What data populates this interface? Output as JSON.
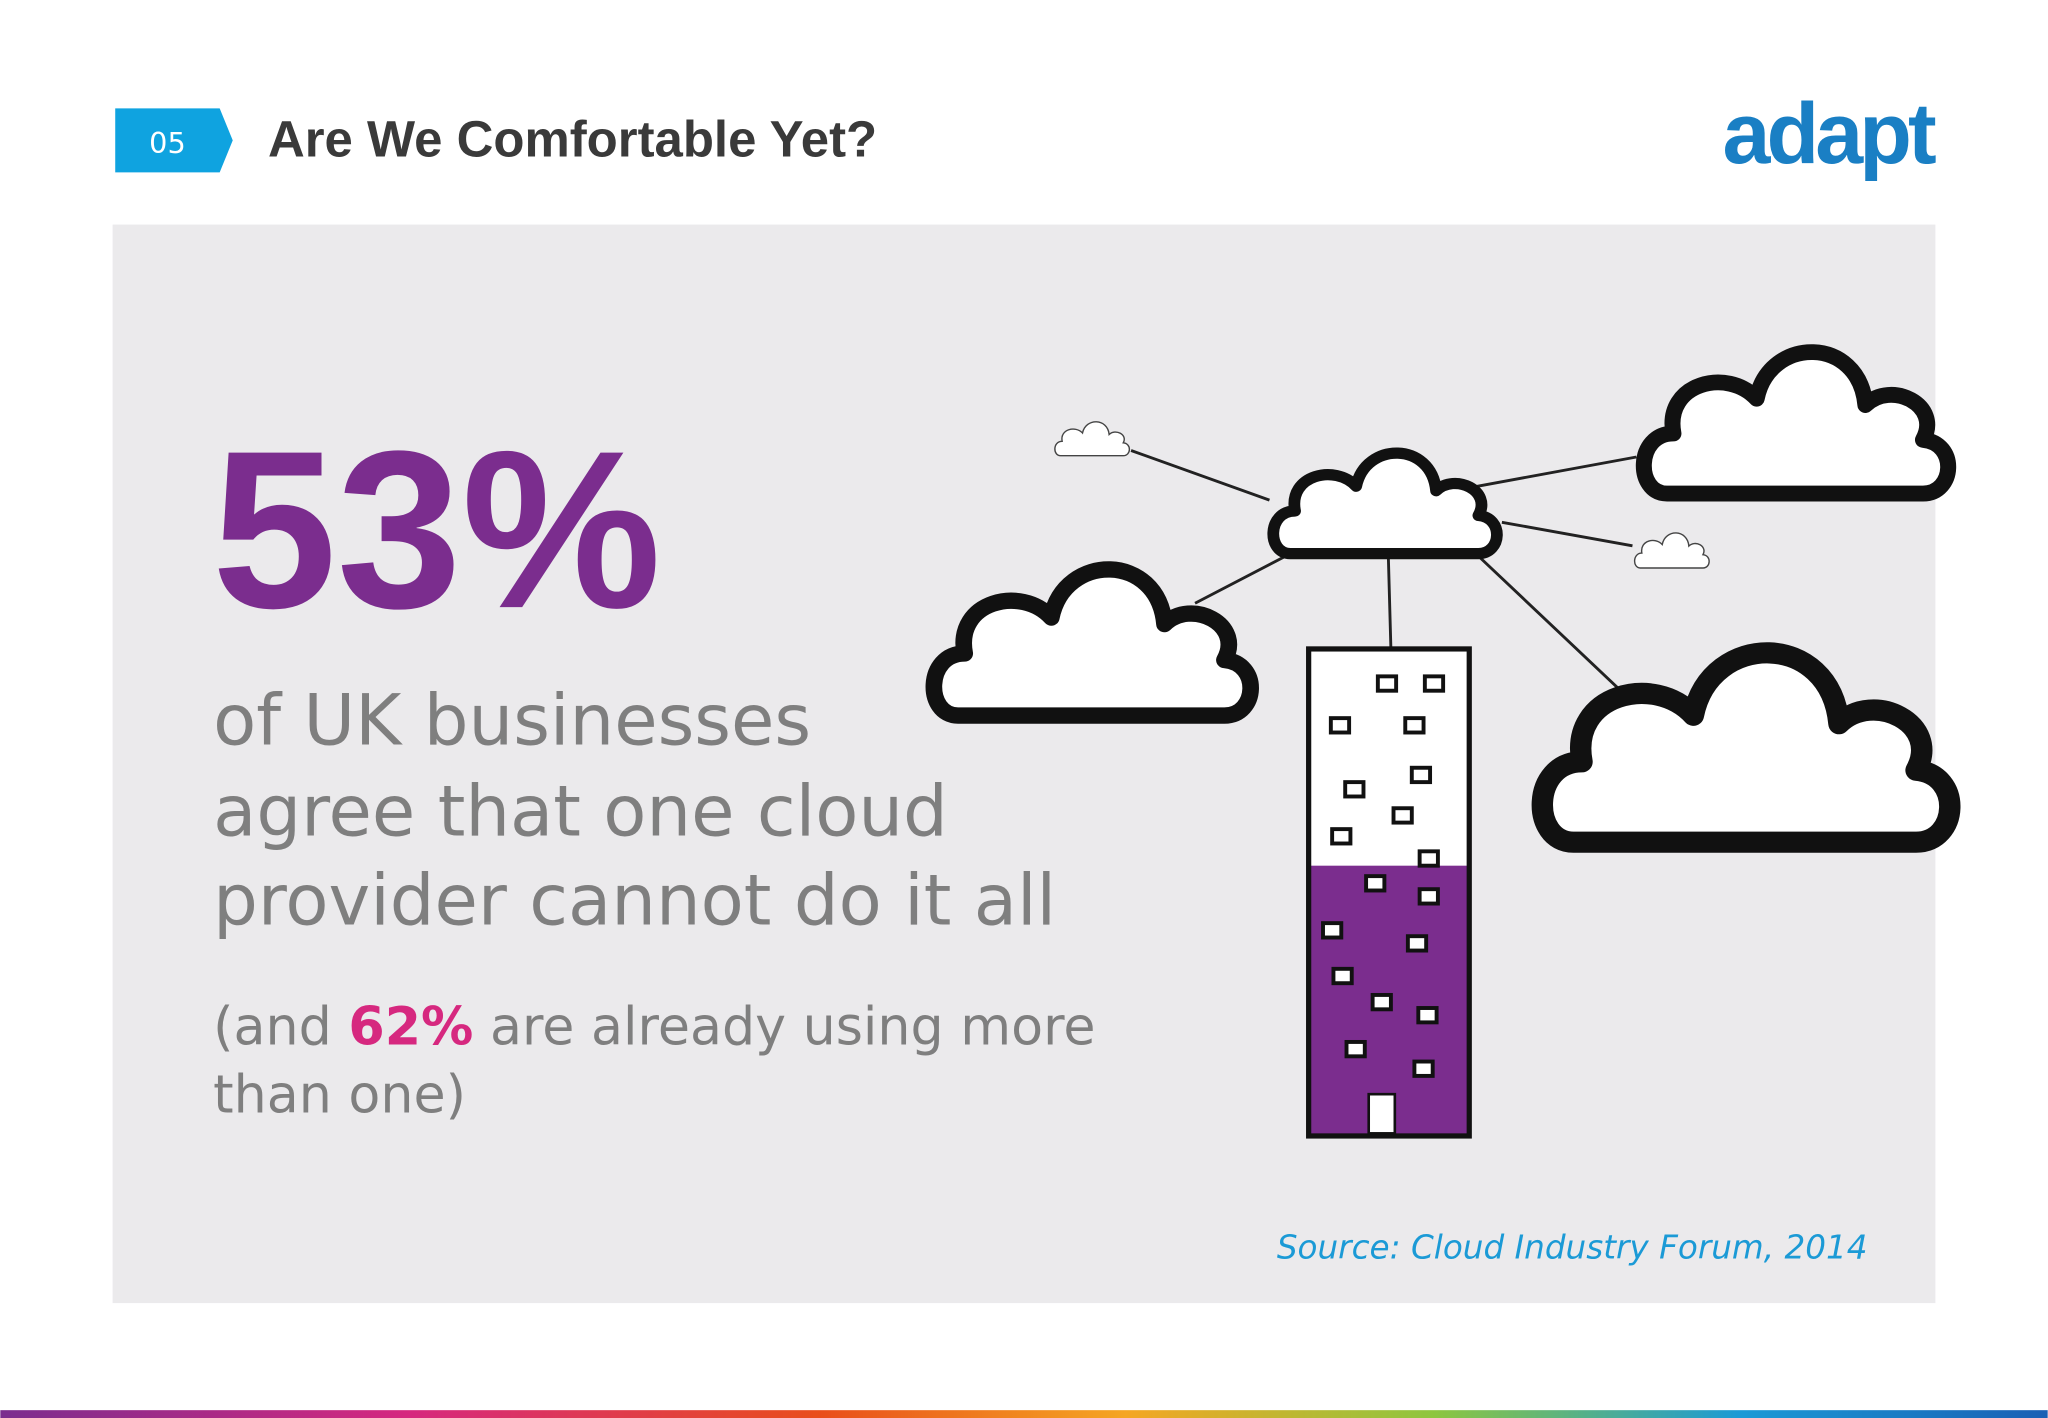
{
  "header": {
    "number": "05",
    "title": "Are We Comfortable Yet?",
    "logo": "adapt"
  },
  "stat": {
    "value": "53%",
    "description": [
      "of UK businesses",
      "agree that one cloud",
      "provider cannot do it all"
    ],
    "note": {
      "before": "(and ",
      "highlight": "62%",
      "after": " are already using more",
      "line2": "than one)"
    }
  },
  "source": "Source: Cloud Industry Forum, 2014"
}
